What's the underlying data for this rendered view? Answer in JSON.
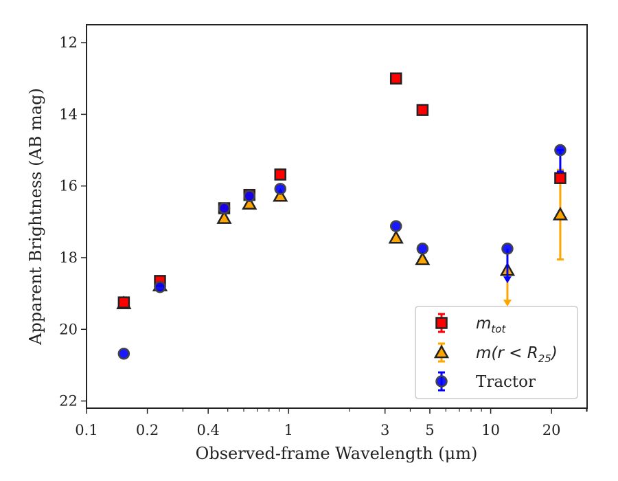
{
  "chart_data": {
    "type": "scatter",
    "title": "",
    "xlabel": "Observed-frame Wavelength (μm)",
    "ylabel": "Apparent Brightness (AB mag)",
    "x_scale": "log",
    "xlim": [
      0.1,
      30
    ],
    "ylim": [
      22.2,
      11.5
    ],
    "y_inverted": true,
    "grid": false,
    "legend_position": "lower-right",
    "x_ticks": [
      {
        "value": 0.1,
        "label": "0.1"
      },
      {
        "value": 0.2,
        "label": "0.2"
      },
      {
        "value": 0.4,
        "label": "0.4"
      },
      {
        "value": 1,
        "label": "1"
      },
      {
        "value": 3,
        "label": "3"
      },
      {
        "value": 5,
        "label": "5"
      },
      {
        "value": 10,
        "label": "10"
      },
      {
        "value": 20,
        "label": "20"
      }
    ],
    "y_ticks": [
      {
        "value": 12,
        "label": "12"
      },
      {
        "value": 14,
        "label": "14"
      },
      {
        "value": 16,
        "label": "16"
      },
      {
        "value": 18,
        "label": "18"
      },
      {
        "value": 20,
        "label": "20"
      },
      {
        "value": 22,
        "label": "22"
      }
    ],
    "series": [
      {
        "name": "m_tot",
        "legend_main": "m",
        "legend_sub": "tot",
        "marker": "square",
        "color": "#ff0000",
        "edge_color": "#222222",
        "points": [
          {
            "x": 0.153,
            "y": 19.25
          },
          {
            "x": 0.231,
            "y": 18.65
          },
          {
            "x": 0.48,
            "y": 16.62
          },
          {
            "x": 0.64,
            "y": 16.25
          },
          {
            "x": 0.91,
            "y": 15.68
          },
          {
            "x": 3.4,
            "y": 13.0
          },
          {
            "x": 4.6,
            "y": 13.88
          },
          {
            "x": 22.1,
            "y": 15.78
          }
        ]
      },
      {
        "name": "m(r < R25)",
        "legend_main": "m(r < R",
        "legend_sub": "25",
        "legend_tail": ")",
        "marker": "triangle",
        "color": "#ffa500",
        "edge_color": "#222222",
        "points": [
          {
            "x": 0.153,
            "y": 19.28
          },
          {
            "x": 0.231,
            "y": 18.78
          },
          {
            "x": 0.48,
            "y": 16.9
          },
          {
            "x": 0.64,
            "y": 16.5
          },
          {
            "x": 0.91,
            "y": 16.28
          },
          {
            "x": 3.4,
            "y": 17.45
          },
          {
            "x": 4.6,
            "y": 18.05
          },
          {
            "x": 12.1,
            "y": 18.35,
            "upper_limit_to": 19.25
          },
          {
            "x": 22.1,
            "y": 16.8,
            "err_low": 15.55,
            "err_high": 18.05
          }
        ]
      },
      {
        "name": "Tractor",
        "legend_main": "Tractor",
        "marker": "circle",
        "color": "#0000ff",
        "edge_color": "#444444",
        "points": [
          {
            "x": 0.153,
            "y": 20.68
          },
          {
            "x": 0.231,
            "y": 18.82
          },
          {
            "x": 0.48,
            "y": 16.62
          },
          {
            "x": 0.64,
            "y": 16.28
          },
          {
            "x": 0.91,
            "y": 16.08
          },
          {
            "x": 3.4,
            "y": 17.12
          },
          {
            "x": 4.6,
            "y": 17.75
          },
          {
            "x": 12.1,
            "y": 17.75,
            "upper_limit_to": 18.6
          },
          {
            "x": 22.1,
            "y": 15.0,
            "err_low": 15.0,
            "err_high": 15.6
          }
        ]
      }
    ]
  }
}
